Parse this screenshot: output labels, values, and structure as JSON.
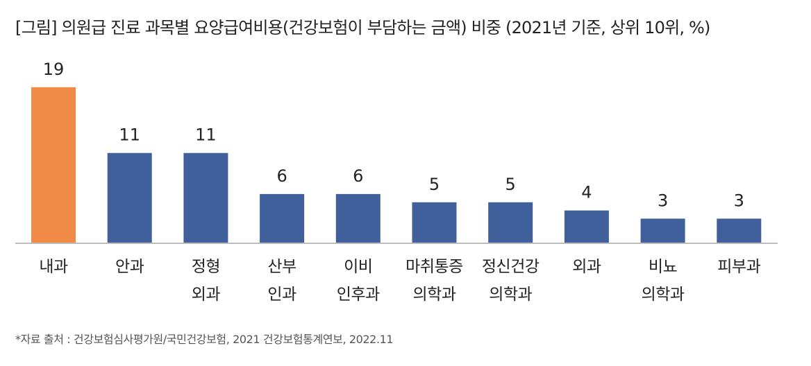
{
  "title": "[그림] 의원급 진료 과목별 요양급여비용(건강보험이 부담하는 금액) 비중 (2021년 기준, 상위 10위, %)",
  "source": "*자료 출처 : 건강보험심사평가원/국민건강보험, 2021 건강보험통계연보, 2022.11",
  "colors": {
    "highlight": "#F28A47",
    "bar": "#40609C",
    "axis": "#BDBDBD"
  },
  "chart_data": {
    "type": "bar",
    "categories": [
      [
        "내과"
      ],
      [
        "안과"
      ],
      [
        "정형",
        "외과"
      ],
      [
        "산부",
        "인과"
      ],
      [
        "이비",
        "인후과"
      ],
      [
        "마취통증",
        "의학과"
      ],
      [
        "정신건강",
        "의학과"
      ],
      [
        "외과"
      ],
      [
        "비뇨",
        "의학과"
      ],
      [
        "피부과"
      ]
    ],
    "values": [
      19,
      11,
      11,
      6,
      6,
      5,
      5,
      4,
      3,
      3
    ],
    "highlight_index": 0,
    "data_labels": true,
    "grid": false
  }
}
